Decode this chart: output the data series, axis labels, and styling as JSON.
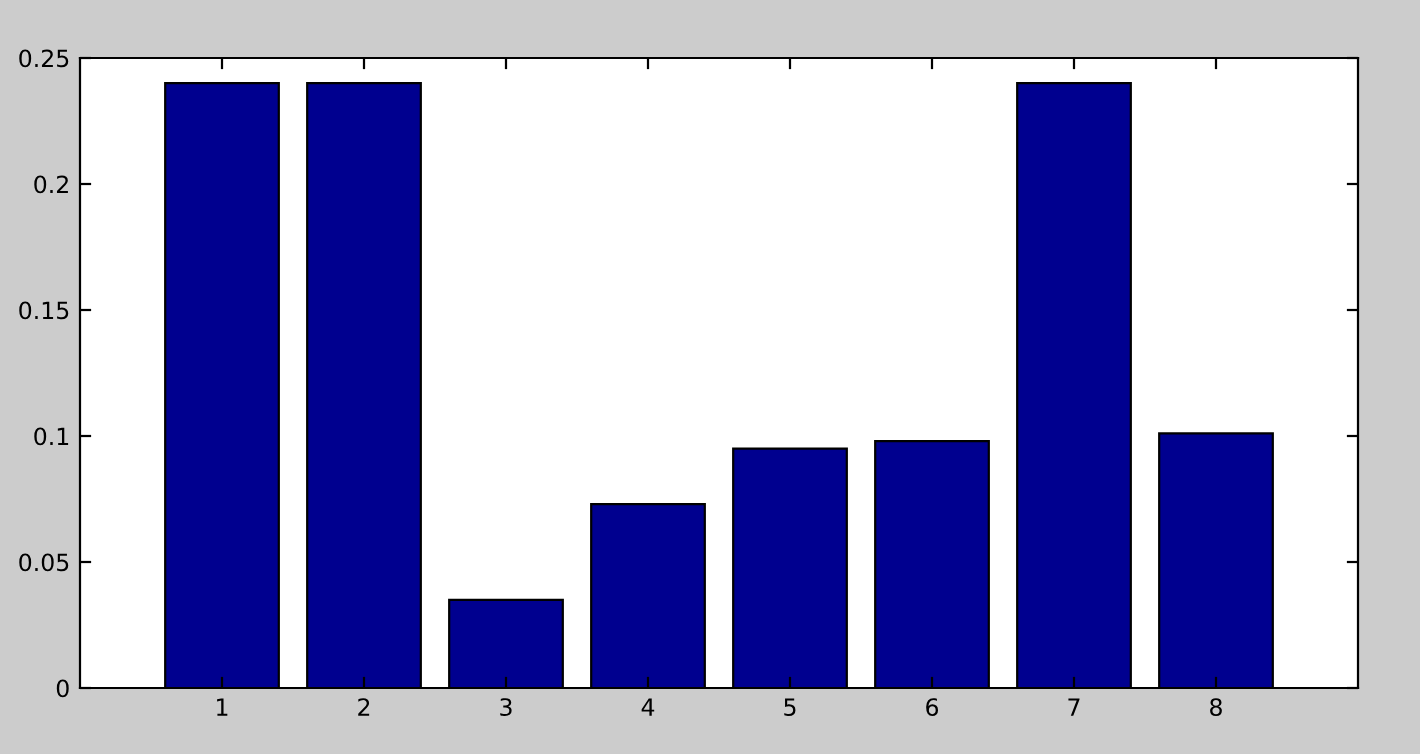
{
  "chart_data": {
    "type": "bar",
    "x": [
      1,
      2,
      3,
      4,
      5,
      6,
      7,
      8
    ],
    "values": [
      0.24,
      0.24,
      0.035,
      0.073,
      0.095,
      0.098,
      0.24,
      0.101
    ],
    "color": "#00008f",
    "xlim": [
      0,
      9
    ],
    "xticks": [
      1,
      2,
      3,
      4,
      5,
      6,
      7,
      8
    ],
    "ylim": [
      0,
      0.25
    ],
    "yticks": [
      0,
      0.05,
      0.1,
      0.15,
      0.2,
      0.25
    ],
    "grid": false,
    "legend": false
  }
}
